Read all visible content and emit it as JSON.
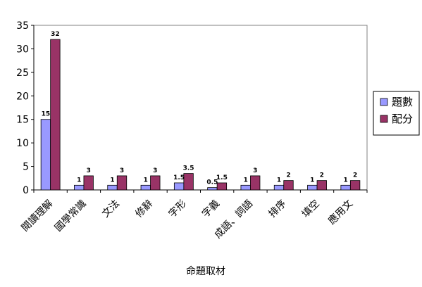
{
  "chart_data": {
    "type": "bar",
    "title": "",
    "xlabel": "命題取材",
    "ylabel": "",
    "ylim": [
      0,
      35
    ],
    "yticks": [
      0,
      5,
      10,
      15,
      20,
      25,
      30,
      35
    ],
    "categories": [
      "閱讀理解",
      "國學常識",
      "文法",
      "修辭",
      "字形",
      "字義",
      "成語、詞語",
      "排序",
      "填空",
      "應用文"
    ],
    "series": [
      {
        "name": "題數",
        "color": "#9999ff",
        "values": [
          15,
          1,
          1,
          1,
          1.5,
          0.5,
          1,
          1,
          1,
          1
        ]
      },
      {
        "name": "配分",
        "color": "#993366",
        "values": [
          32,
          3,
          3,
          3,
          3.5,
          1.5,
          3,
          2,
          2,
          2
        ]
      }
    ],
    "value_labels": [
      [
        "15",
        "1",
        "1",
        "1",
        "1.5",
        "0.5",
        "1",
        "1",
        "1",
        "1"
      ],
      [
        "32",
        "3",
        "3",
        "3",
        "3.5",
        "1.5",
        "3",
        "2",
        "2",
        "2"
      ]
    ],
    "grid": false,
    "legend_position": "right"
  }
}
